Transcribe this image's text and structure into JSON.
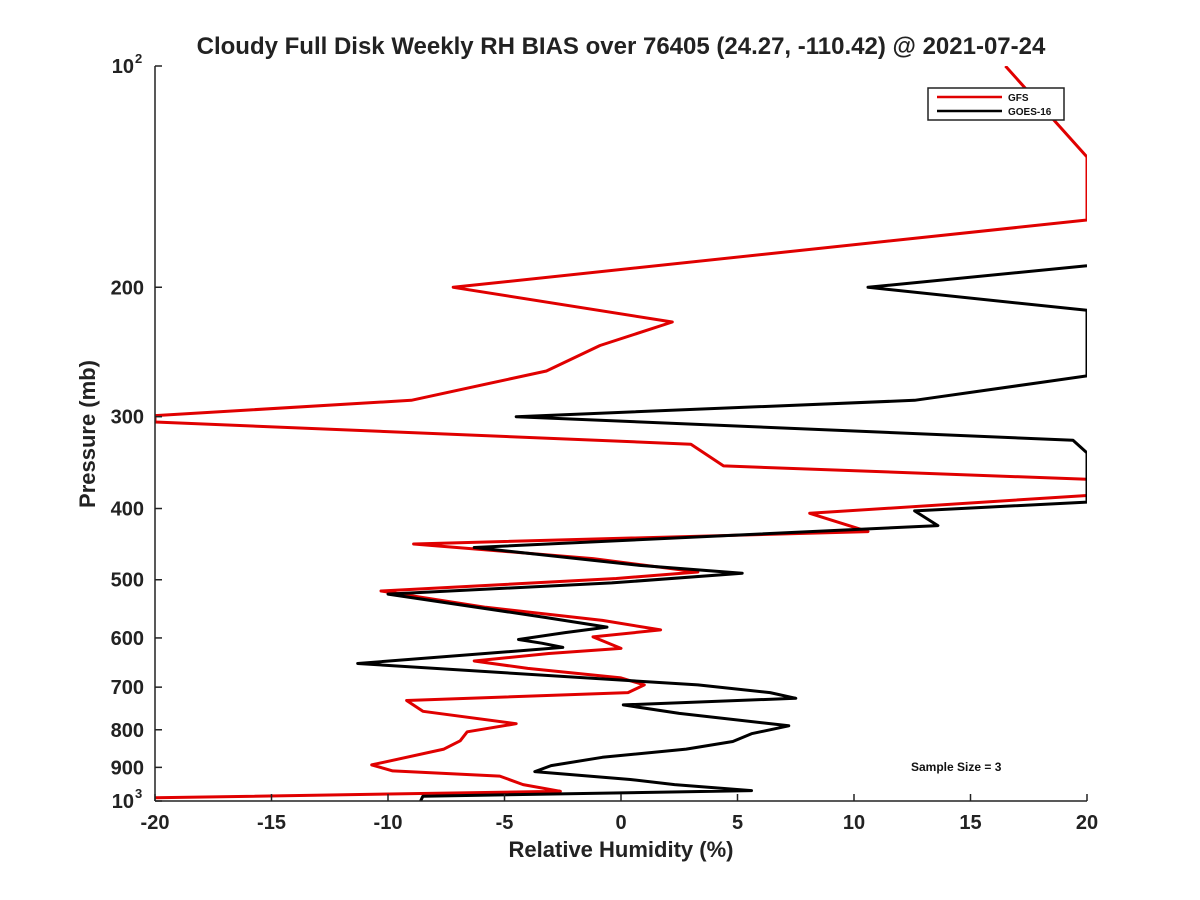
{
  "chart_data": {
    "type": "line",
    "title": "Cloudy Full Disk Weekly RH BIAS over 76405 (24.27, -110.42) @ 2021-07-24",
    "xlabel": "Relative Humidity (%)",
    "ylabel": "Pressure (mb)",
    "xlim": [
      -20,
      20
    ],
    "ylim": [
      100,
      1000
    ],
    "y_scale": "log",
    "y_reversed": true,
    "grid": false,
    "legend_position": "top-right",
    "x_ticks": [
      -20,
      -15,
      -10,
      -5,
      0,
      5,
      10,
      15,
      20
    ],
    "x_tick_labels": [
      "-20",
      "-15",
      "-10",
      "-5",
      "0",
      "5",
      "10",
      "15",
      "20"
    ],
    "y_ticks": [
      {
        "value": 100,
        "base": "10",
        "exp": "2"
      },
      {
        "value": 200,
        "label": "200"
      },
      {
        "value": 300,
        "label": "300"
      },
      {
        "value": 400,
        "label": "400"
      },
      {
        "value": 500,
        "label": "500"
      },
      {
        "value": 600,
        "label": "600"
      },
      {
        "value": 700,
        "label": "700"
      },
      {
        "value": 800,
        "label": "800"
      },
      {
        "value": 900,
        "label": "900"
      },
      {
        "value": 1000,
        "base": "10",
        "exp": "3"
      }
    ],
    "series": [
      {
        "name": "GFS",
        "color": "#e00000",
        "points": [
          [
            16.5,
            100
          ],
          [
            20,
            133
          ],
          [
            20,
            162
          ],
          [
            -7.2,
            200
          ],
          [
            2.2,
            223
          ],
          [
            -0.9,
            240
          ],
          [
            -3.2,
            260
          ],
          [
            -9,
            285
          ],
          [
            -20,
            299
          ],
          [
            -20,
            305
          ],
          [
            3.0,
            327
          ],
          [
            4.4,
            350
          ],
          [
            20,
            365
          ],
          [
            20,
            384
          ],
          [
            8.1,
            406
          ],
          [
            10.6,
            430
          ],
          [
            -8.9,
            447
          ],
          [
            -1.2,
            468
          ],
          [
            3.3,
            488
          ],
          [
            -0.2,
            498
          ],
          [
            -10.3,
            518
          ],
          [
            -5.8,
            545
          ],
          [
            -0.8,
            568
          ],
          [
            1.7,
            585
          ],
          [
            -1.2,
            598
          ],
          [
            0,
            620
          ],
          [
            -3.1,
            630
          ],
          [
            -6.3,
            645
          ],
          [
            -4.0,
            660
          ],
          [
            0,
            680
          ],
          [
            1.0,
            695
          ],
          [
            0.3,
            712
          ],
          [
            -9.2,
            730
          ],
          [
            -8.5,
            755
          ],
          [
            -4.5,
            785
          ],
          [
            -6.6,
            805
          ],
          [
            -6.9,
            828
          ],
          [
            -7.6,
            850
          ],
          [
            -10.7,
            893
          ],
          [
            -9.8,
            910
          ],
          [
            -5.2,
            925
          ],
          [
            -4.2,
            950
          ],
          [
            -2.6,
            970
          ],
          [
            -20,
            990
          ]
        ]
      },
      {
        "name": "GOES-16",
        "color": "#000000",
        "points": [
          [
            20,
            187
          ],
          [
            10.6,
            200
          ],
          [
            20,
            215
          ],
          [
            20,
            264
          ],
          [
            12.6,
            285
          ],
          [
            -4.5,
            300
          ],
          [
            19.4,
            323
          ],
          [
            20,
            336
          ],
          [
            20,
            392
          ],
          [
            12.6,
            403
          ],
          [
            13.6,
            422
          ],
          [
            -6.3,
            452
          ],
          [
            0.8,
            478
          ],
          [
            5.2,
            490
          ],
          [
            -0.4,
            505
          ],
          [
            -10.0,
            523
          ],
          [
            -3.2,
            563
          ],
          [
            -0.6,
            580
          ],
          [
            -2.4,
            590
          ],
          [
            -4.4,
            603
          ],
          [
            -3.4,
            610
          ],
          [
            -2.5,
            618
          ],
          [
            -11.3,
            650
          ],
          [
            3.3,
            695
          ],
          [
            6.4,
            712
          ],
          [
            7.5,
            725
          ],
          [
            0.1,
            740
          ],
          [
            2.5,
            760
          ],
          [
            7.2,
            790
          ],
          [
            5.6,
            810
          ],
          [
            4.8,
            830
          ],
          [
            2.8,
            850
          ],
          [
            -0.8,
            872
          ],
          [
            -3.0,
            895
          ],
          [
            -3.7,
            912
          ],
          [
            0.4,
            935
          ],
          [
            2.3,
            950
          ],
          [
            5.6,
            968
          ],
          [
            -8.5,
            985
          ],
          [
            -8.6,
            1000
          ]
        ]
      }
    ],
    "annotations": [
      {
        "text": "Sample Size = 3"
      }
    ]
  }
}
